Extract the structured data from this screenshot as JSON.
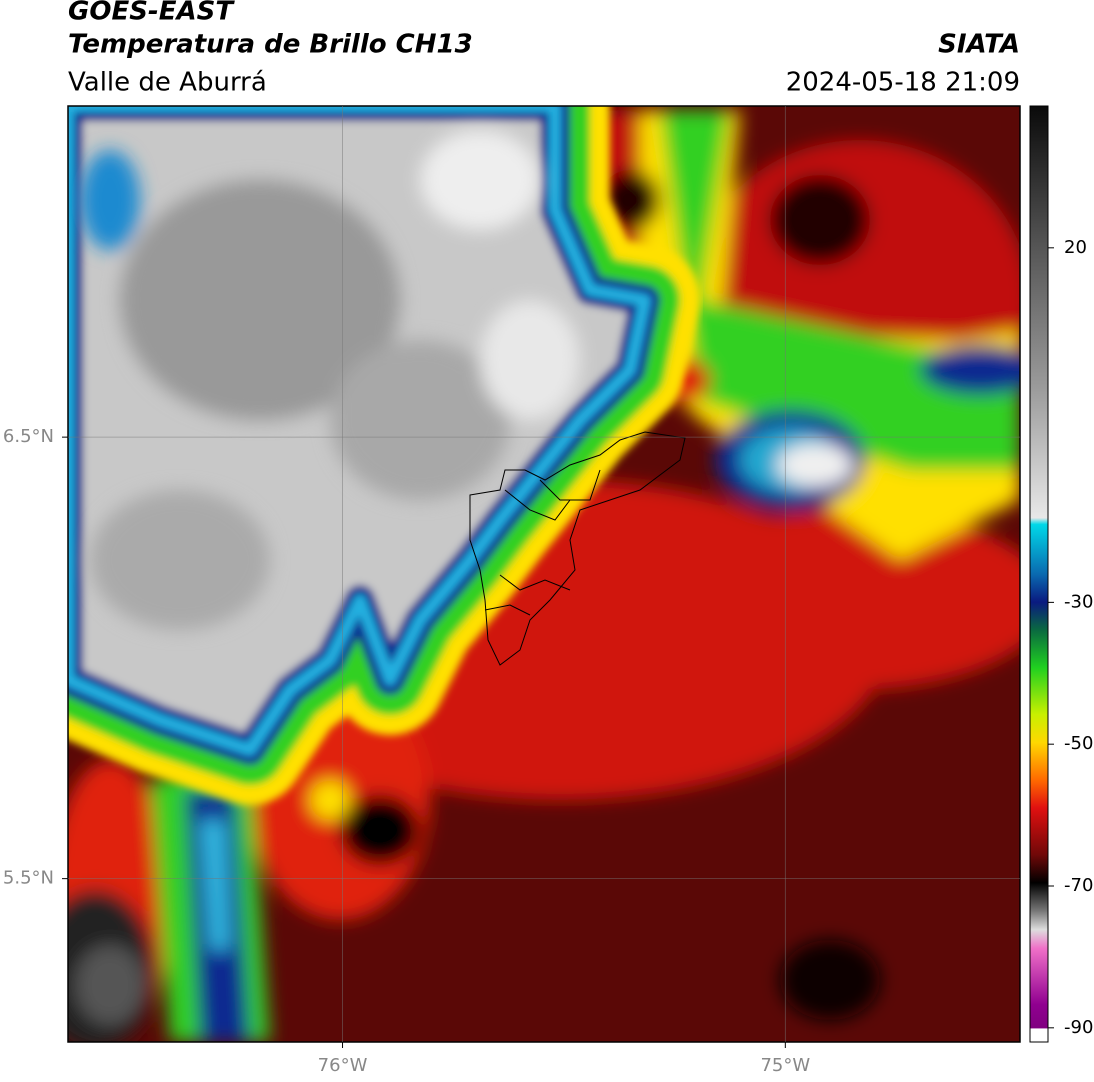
{
  "header": {
    "title": "GOES-EAST",
    "subtitle": "Temperatura de Brillo CH13",
    "region": "Valle de Aburrá",
    "source": "SIATA",
    "datetime": "2024-05-18 21:09"
  },
  "map": {
    "xlim": [
      -76.62,
      -74.47
    ],
    "ylim": [
      5.13,
      7.25
    ],
    "xticks": [
      {
        "value": -76,
        "label": "76°W"
      },
      {
        "value": -75,
        "label": "75°W"
      }
    ],
    "yticks": [
      {
        "value": 6.5,
        "label": "6.5°N"
      },
      {
        "value": 5.5,
        "label": "5.5°N"
      }
    ],
    "grid": true
  },
  "colorbar": {
    "lim": [
      -92,
      40
    ],
    "ticks": [
      20,
      -30,
      -50,
      -70,
      -90
    ]
  }
}
